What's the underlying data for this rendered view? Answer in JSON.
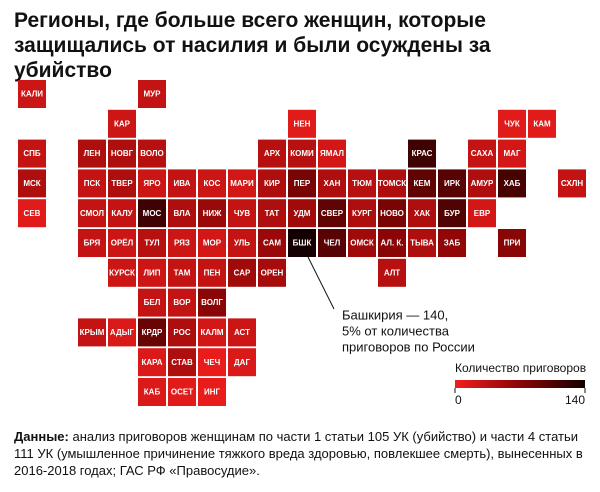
{
  "chart_data": {
    "type": "tile_map",
    "title": "Регионы, где больше всего женщин, которые защищались от насилия и были осуждены за убийство",
    "categories": [
      "КАЛИ",
      "МУР",
      "КАР",
      "НЕН",
      "ЧУК",
      "КАМ",
      "СПБ",
      "ЛЕН",
      "НОВГ",
      "ВОЛО",
      "АРХ",
      "КОМИ",
      "ЯМАЛ",
      "КРАС",
      "САХА",
      "МАГ",
      "МСК",
      "ПСК",
      "ТВЕР",
      "ЯРО",
      "ИВА",
      "КОС",
      "МАРИ",
      "КИР",
      "ПЕР",
      "ХАН",
      "ТЮМ",
      "ТОМСК",
      "КЕМ",
      "ИРК",
      "АМУР",
      "ХАБ",
      "СХЛН",
      "СЕВ",
      "СМОЛ",
      "КАЛУ",
      "МОС",
      "ВЛА",
      "НИЖ",
      "ЧУВ",
      "ТАТ",
      "УДМ",
      "СВЕР",
      "КУРГ",
      "НОВО",
      "ХАК",
      "БУР",
      "ЕВР",
      "БРЯ",
      "ОРЁЛ",
      "ТУЛ",
      "РЯЗ",
      "МОР",
      "УЛЬ",
      "САМ",
      "БШК",
      "ЧЕЛ",
      "ОМСК",
      "АЛ. К.",
      "ТЫВА",
      "ЗАБ",
      "ПРИ",
      "КУРСК",
      "ЛИП",
      "ТАМ",
      "ПЕН",
      "САР",
      "ОРЕН",
      "АЛТ",
      "БЕЛ",
      "ВОР",
      "ВОЛГ",
      "КРЫМ",
      "АДЫГ",
      "КРДР",
      "РОС",
      "КАЛМ",
      "АСТ",
      "КАРА",
      "СТАВ",
      "ЧЕЧ",
      "ДАГ",
      "КАБ",
      "ОСЕТ",
      "ИНГ"
    ],
    "values": [
      25,
      30,
      25,
      10,
      10,
      10,
      30,
      45,
      45,
      40,
      40,
      40,
      20,
      115,
      30,
      20,
      45,
      30,
      45,
      25,
      30,
      25,
      20,
      45,
      80,
      45,
      40,
      45,
      95,
      100,
      45,
      110,
      30,
      10,
      30,
      30,
      115,
      45,
      60,
      30,
      45,
      55,
      95,
      45,
      80,
      45,
      105,
      20,
      30,
      25,
      40,
      25,
      20,
      30,
      60,
      140,
      100,
      55,
      70,
      45,
      65,
      70,
      25,
      25,
      30,
      30,
      55,
      50,
      40,
      30,
      30,
      70,
      30,
      15,
      90,
      45,
      20,
      25,
      15,
      45,
      5,
      15,
      15,
      10,
      5
    ],
    "colorbar": {
      "title": "Количество приговоров",
      "lim": [
        0,
        140
      ],
      "ticks": [
        0,
        140
      ],
      "colors": [
        "#f01e1e",
        "#8a0505",
        "#140000"
      ]
    },
    "annotation": [
      "Башкирия — 140,",
      "5% от количества",
      "приговоров по России"
    ],
    "source_label": "Данные:",
    "source_text": "анализ приговоров женщинам по части 1 статьи 105 УК (убийство) и части 4 статьи 111 УК (умышленное причинение тяжкого вреда здоровью, повлекшее смерть), вынесенных в 2016-2018 годах; ГАС РФ «Правосудие»."
  }
}
